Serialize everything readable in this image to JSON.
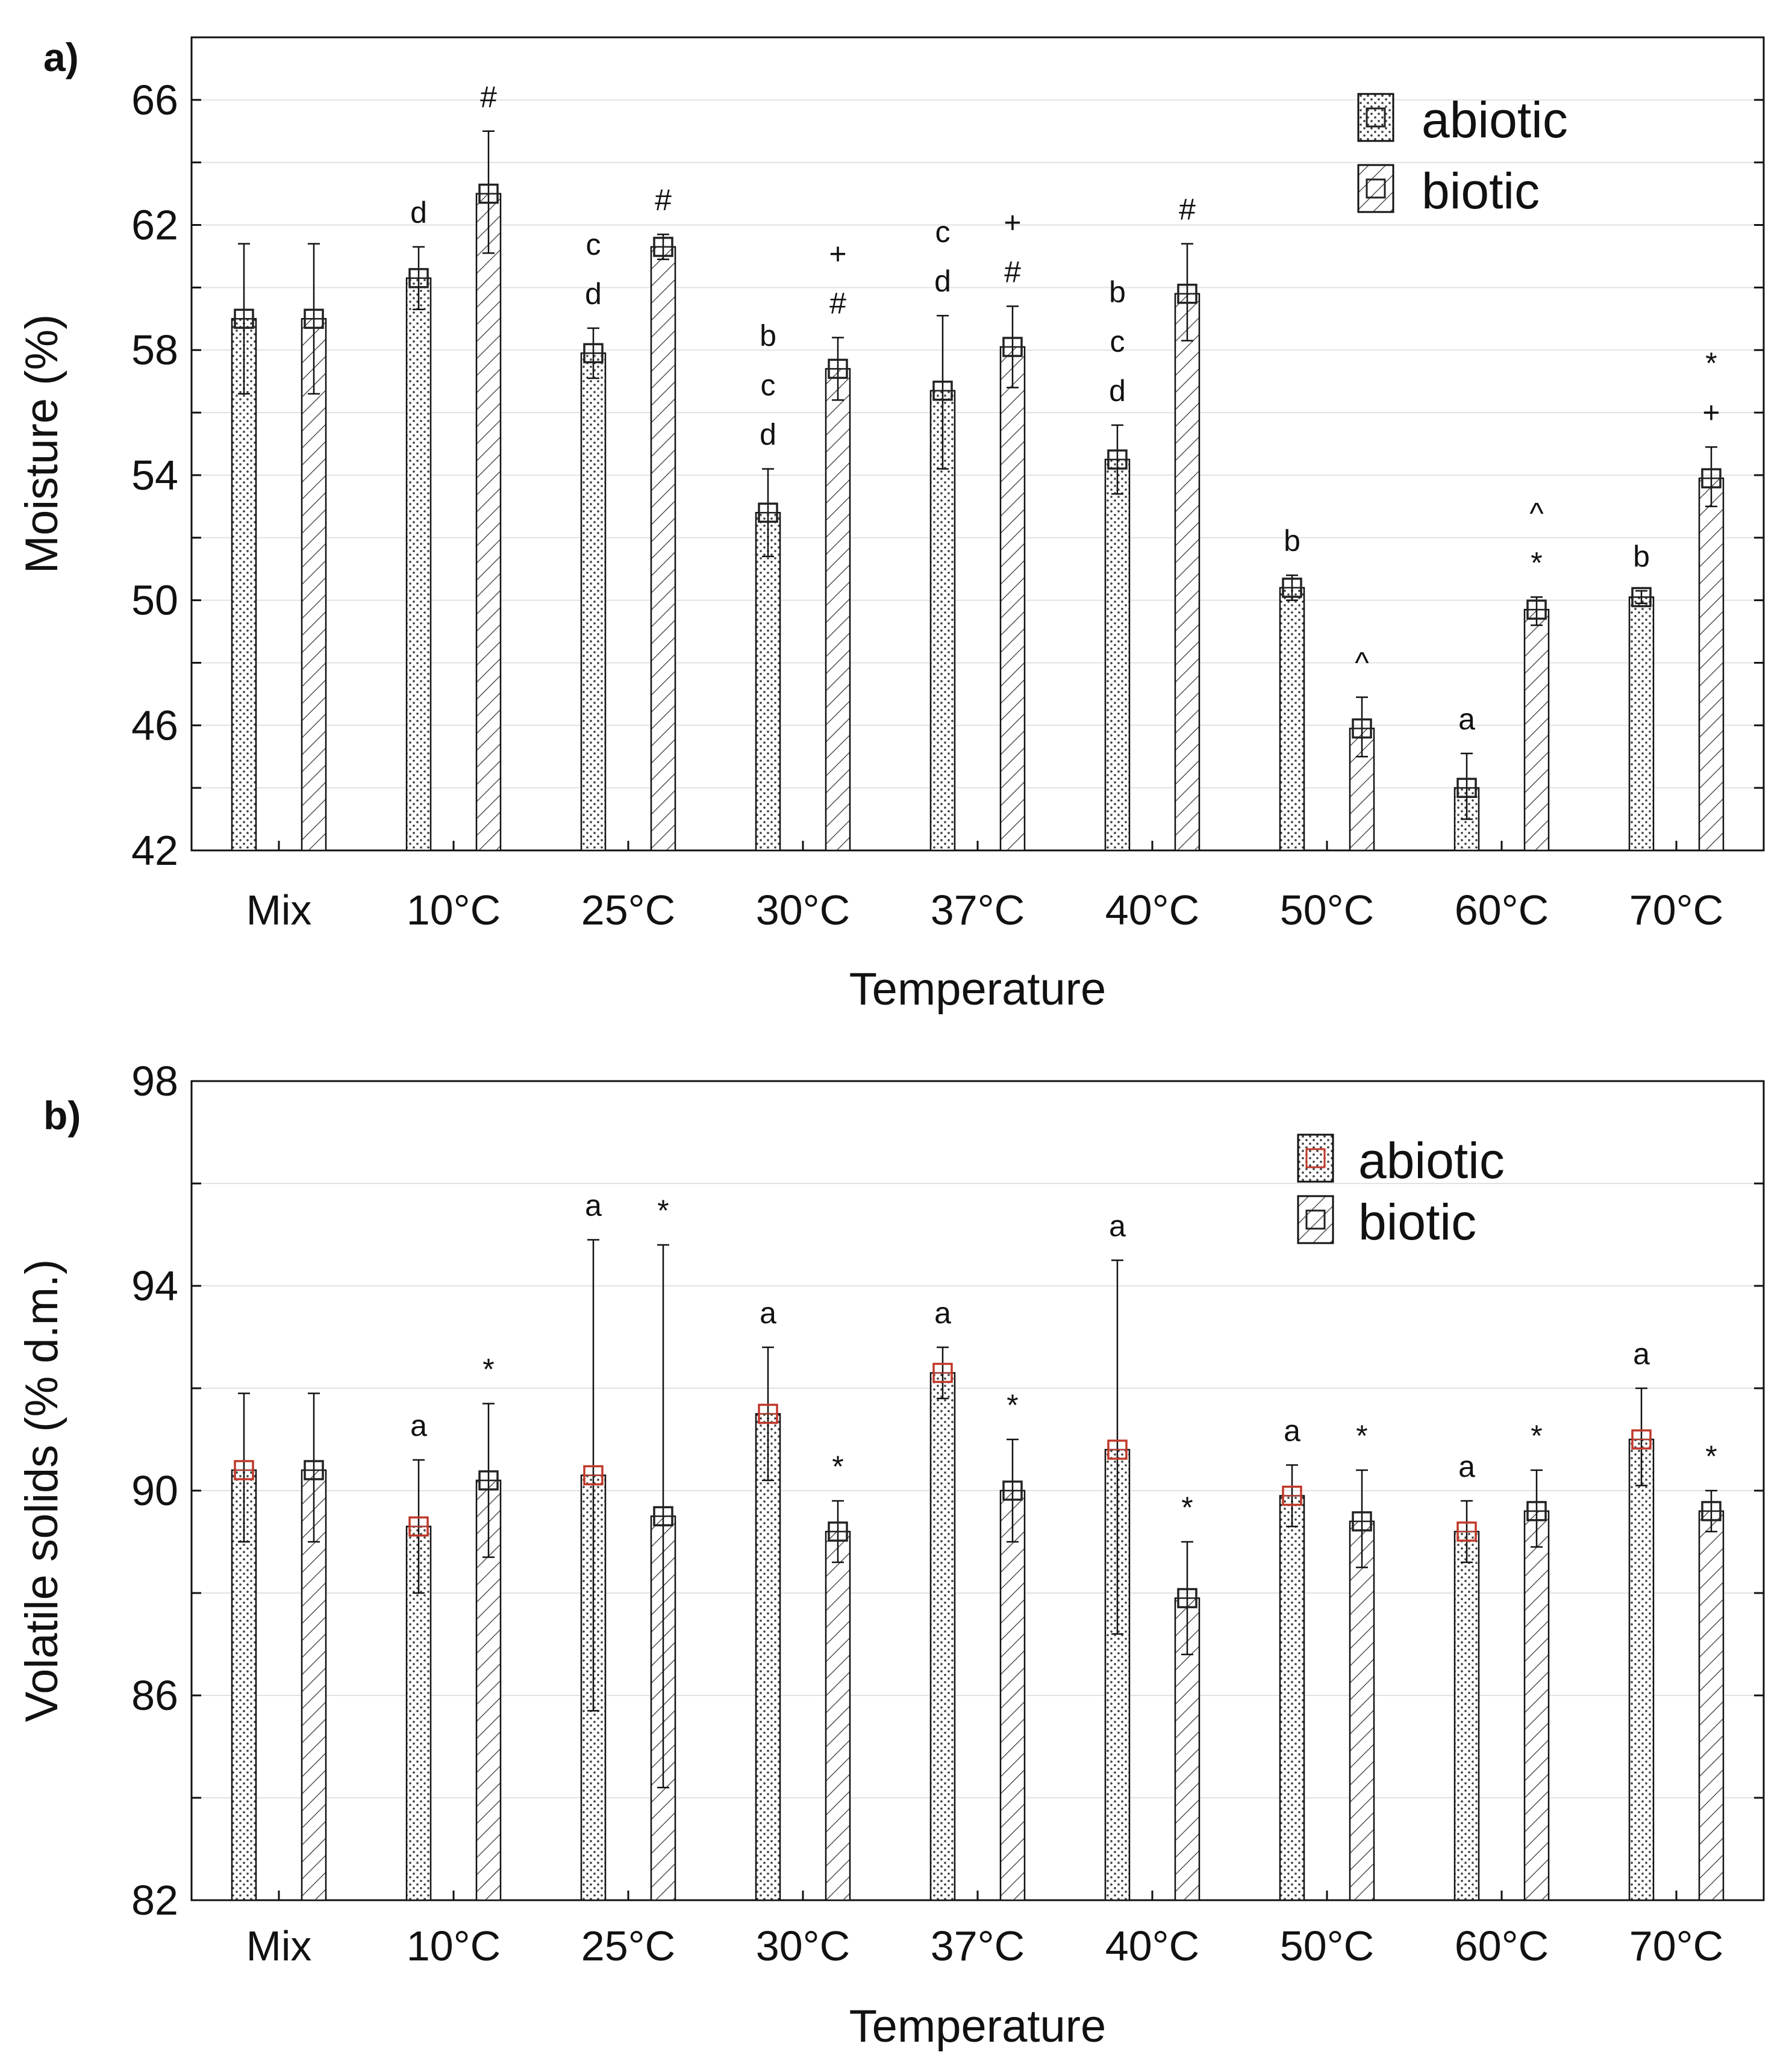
{
  "chart_data": [
    {
      "type": "bar",
      "panel_label": "a)",
      "categories": [
        "Mix",
        "10°C",
        "25°C",
        "30°C",
        "37°C",
        "40°C",
        "50°C",
        "60°C",
        "70°C"
      ],
      "xlabel": "Temperature",
      "ylabel": "Moisture (%)",
      "ylim": [
        42,
        68
      ],
      "yticks": [
        42,
        46,
        50,
        54,
        58,
        62,
        66
      ],
      "grid": "horizontal",
      "legend_position": "top-right",
      "series": [
        {
          "name": "abiotic",
          "pattern": "dots",
          "marker_color": "#222222",
          "values": [
            59.0,
            60.3,
            57.9,
            52.8,
            56.7,
            54.5,
            50.4,
            44.0,
            50.1
          ],
          "err_low": [
            56.6,
            59.3,
            57.1,
            51.4,
            54.2,
            53.4,
            50.0,
            43.0,
            49.9
          ],
          "err_high": [
            61.4,
            61.3,
            58.7,
            54.2,
            59.1,
            55.6,
            50.8,
            45.1,
            50.3
          ],
          "sig": [
            [],
            [
              "d"
            ],
            [
              "c",
              "d"
            ],
            [
              "b",
              "c",
              "d"
            ],
            [
              "c",
              "d"
            ],
            [
              "b",
              "c",
              "d"
            ],
            [
              "b"
            ],
            [
              "a"
            ],
            [
              "b"
            ]
          ]
        },
        {
          "name": "biotic",
          "pattern": "hatch",
          "marker_color": "#222222",
          "values": [
            59.0,
            63.0,
            61.3,
            57.4,
            58.1,
            59.8,
            45.9,
            49.7,
            53.9
          ],
          "err_low": [
            56.6,
            61.1,
            60.9,
            56.4,
            56.8,
            58.3,
            45.0,
            49.2,
            53.0
          ],
          "err_high": [
            61.4,
            65.0,
            61.7,
            58.4,
            59.4,
            61.4,
            46.9,
            50.1,
            54.9
          ],
          "sig": [
            [],
            [
              "#"
            ],
            [
              "#"
            ],
            [
              "+",
              "#"
            ],
            [
              "+",
              "#"
            ],
            [
              "#"
            ],
            [
              "^"
            ],
            [
              "^",
              "*"
            ],
            [
              "*",
              "+"
            ]
          ]
        }
      ]
    },
    {
      "type": "bar",
      "panel_label": "b)",
      "categories": [
        "Mix",
        "10°C",
        "25°C",
        "30°C",
        "37°C",
        "40°C",
        "50°C",
        "60°C",
        "70°C"
      ],
      "xlabel": "Temperature",
      "ylabel": "Volatile solids (% d.m.)",
      "ylim": [
        82,
        98
      ],
      "yticks": [
        82,
        86,
        90,
        94,
        98
      ],
      "grid": "horizontal",
      "legend_position": "top-right",
      "series": [
        {
          "name": "abiotic",
          "pattern": "dots",
          "marker_color": "#c0392b",
          "values": [
            90.4,
            89.3,
            90.3,
            91.5,
            92.3,
            90.8,
            89.9,
            89.2,
            91.0
          ],
          "err_low": [
            89.0,
            88.0,
            85.7,
            90.2,
            91.8,
            87.2,
            89.3,
            88.6,
            90.1
          ],
          "err_high": [
            91.9,
            90.6,
            94.9,
            92.8,
            92.8,
            94.5,
            90.5,
            89.8,
            92.0
          ],
          "sig": [
            [],
            [
              "a"
            ],
            [
              "a"
            ],
            [
              "a"
            ],
            [
              "a"
            ],
            [
              "a"
            ],
            [
              "a"
            ],
            [
              "a"
            ],
            [
              "a"
            ]
          ]
        },
        {
          "name": "biotic",
          "pattern": "hatch",
          "marker_color": "#222222",
          "values": [
            90.4,
            90.2,
            89.5,
            89.2,
            90.0,
            87.9,
            89.4,
            89.6,
            89.6
          ],
          "err_low": [
            89.0,
            88.7,
            84.2,
            88.6,
            89.0,
            86.8,
            88.5,
            88.9,
            89.2
          ],
          "err_high": [
            91.9,
            91.7,
            94.8,
            89.8,
            91.0,
            89.0,
            90.4,
            90.4,
            90.0
          ],
          "sig": [
            [],
            [
              "*"
            ],
            [
              "*"
            ],
            [
              "*"
            ],
            [
              "*"
            ],
            [
              "*"
            ],
            [
              "*"
            ],
            [
              "*"
            ],
            [
              "*"
            ]
          ]
        }
      ]
    }
  ]
}
